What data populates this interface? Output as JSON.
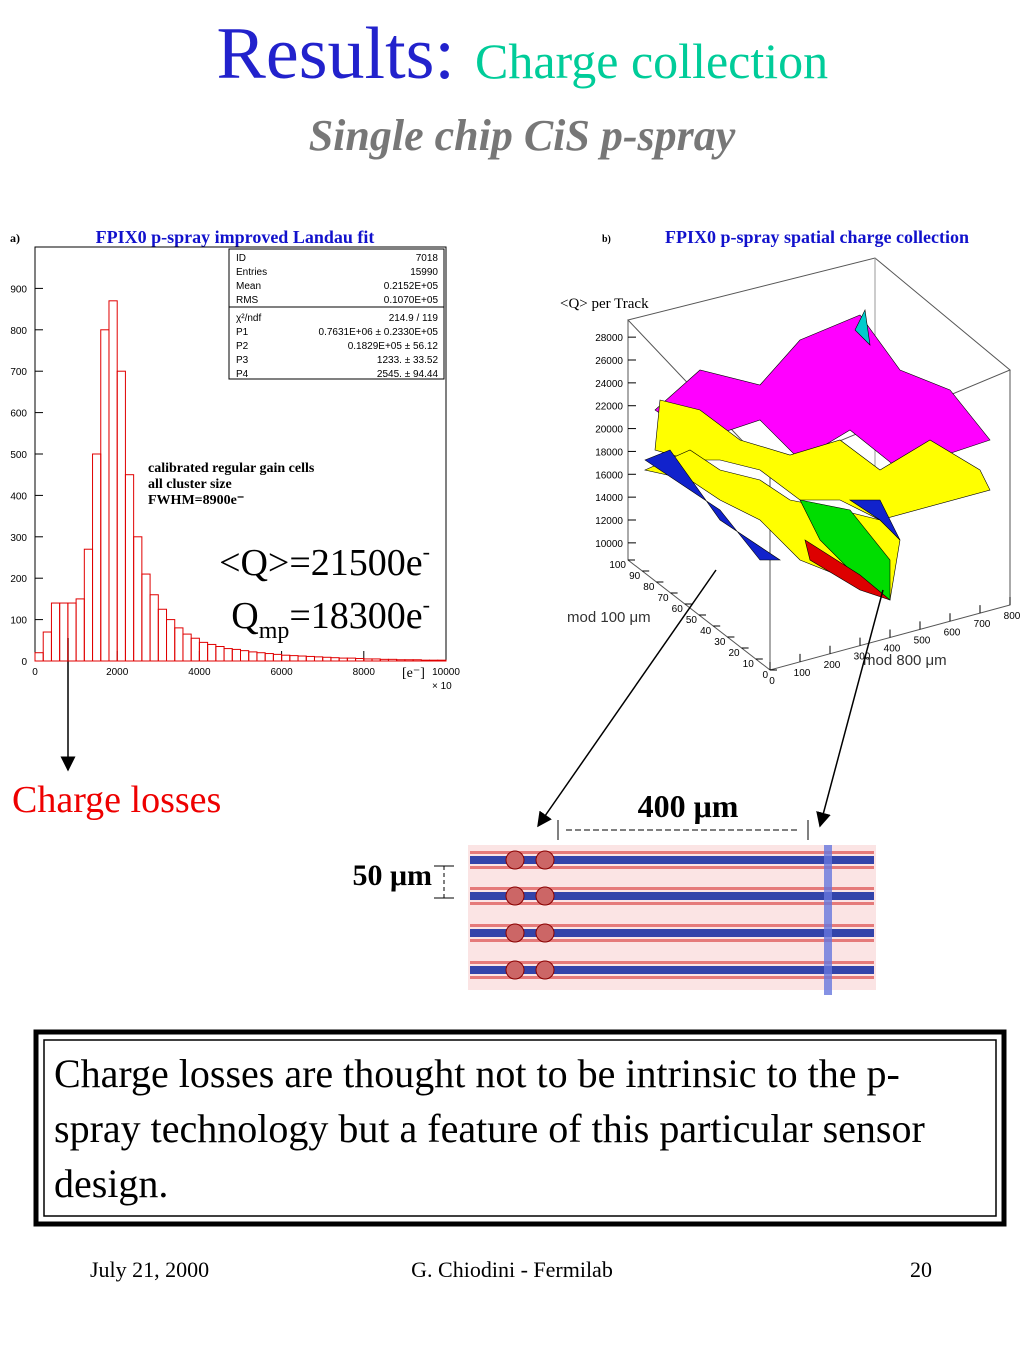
{
  "header": {
    "title": "Results:",
    "subtitle": "Charge collection",
    "subtitle2": "Single chip CiS p-spray"
  },
  "chart_data": [
    {
      "type": "histogram",
      "label": "a)",
      "title": "FPIX0 p-spray improved Landau fit",
      "color": "#e00000",
      "bins": [
        0,
        200,
        400,
        600,
        800,
        1000,
        1200,
        1400,
        1600,
        1800,
        2000,
        2200,
        2400,
        2600,
        2800,
        3000,
        3200,
        3400,
        3600,
        3800,
        4000,
        4200,
        4400,
        4600,
        4800,
        5000,
        5200,
        5400,
        5600,
        5800,
        6000,
        6200,
        6400,
        6600,
        6800,
        7000,
        7200,
        7400,
        7600,
        7800,
        8000,
        8200,
        8400,
        8600,
        8800,
        9000,
        9200,
        9400,
        9600,
        9800,
        10000
      ],
      "values": [
        20,
        70,
        140,
        140,
        140,
        150,
        270,
        500,
        800,
        870,
        700,
        450,
        300,
        210,
        160,
        125,
        100,
        80,
        65,
        55,
        45,
        40,
        35,
        30,
        28,
        25,
        22,
        20,
        18,
        16,
        14,
        13,
        12,
        11,
        10,
        9,
        8,
        7,
        7,
        6,
        5,
        5,
        4,
        4,
        3,
        3,
        3,
        2,
        2,
        2
      ],
      "xlim": [
        0,
        10000
      ],
      "ylim": [
        0,
        1000
      ],
      "xticks": [
        0,
        2000,
        4000,
        6000,
        8000,
        10000
      ],
      "yticks": [
        0,
        100,
        200,
        300,
        400,
        500,
        600,
        700,
        800,
        900
      ],
      "xlabel": "[e⁻]",
      "xscale_label": "× 10",
      "stats": [
        [
          "ID",
          "7018"
        ],
        [
          "Entries",
          "15990"
        ],
        [
          "Mean",
          "0.2152E+05"
        ],
        [
          "RMS",
          "0.1070E+05"
        ],
        [
          "χ²/ndf",
          "214.9   /  119"
        ],
        [
          "P1",
          "0.7631E+06 ±  0.2330E+05"
        ],
        [
          "P2",
          "0.1829E+05 ±       56.12"
        ],
        [
          "P3",
          "1233. ±       33.52"
        ],
        [
          "P4",
          "2545. ±       94.44"
        ]
      ],
      "annotations": [
        "calibrated regular gain cells",
        "all cluster size",
        "FWHM=8900e⁻"
      ],
      "mean": {
        "text": "<Q>=21500e",
        "sup": "-"
      },
      "mp": {
        "text": "Q",
        "sub": "mp",
        "text2": "=18300e",
        "sup": "-"
      }
    },
    {
      "type": "surface3d",
      "label": "b)",
      "title": "FPIX0 p-spray spatial charge collection",
      "zlabel": "<Q> per Track",
      "zlim": [
        8500,
        29500
      ],
      "zticks": [
        10000,
        12000,
        14000,
        16000,
        18000,
        20000,
        22000,
        24000,
        26000,
        28000
      ],
      "xlabel": "mod 800 μm",
      "xlim": [
        0,
        800
      ],
      "xticks": [
        0,
        100,
        200,
        300,
        400,
        500,
        600,
        700,
        800
      ],
      "ylabel": "mod 100 μm",
      "ylim": [
        0,
        100
      ],
      "yticks": [
        0,
        10,
        20,
        30,
        40,
        50,
        60,
        70,
        80,
        90,
        100
      ]
    }
  ],
  "losses": "Charge losses",
  "pitch_x": "400 μm",
  "pitch_y": "50 μm",
  "note": "Charge losses are thought not to be intrinsic to the p-spray technology but a feature of this particular sensor design.",
  "footer": {
    "date": "July 21, 2000",
    "author": "G. Chiodini - Fermilab",
    "page": "20"
  }
}
